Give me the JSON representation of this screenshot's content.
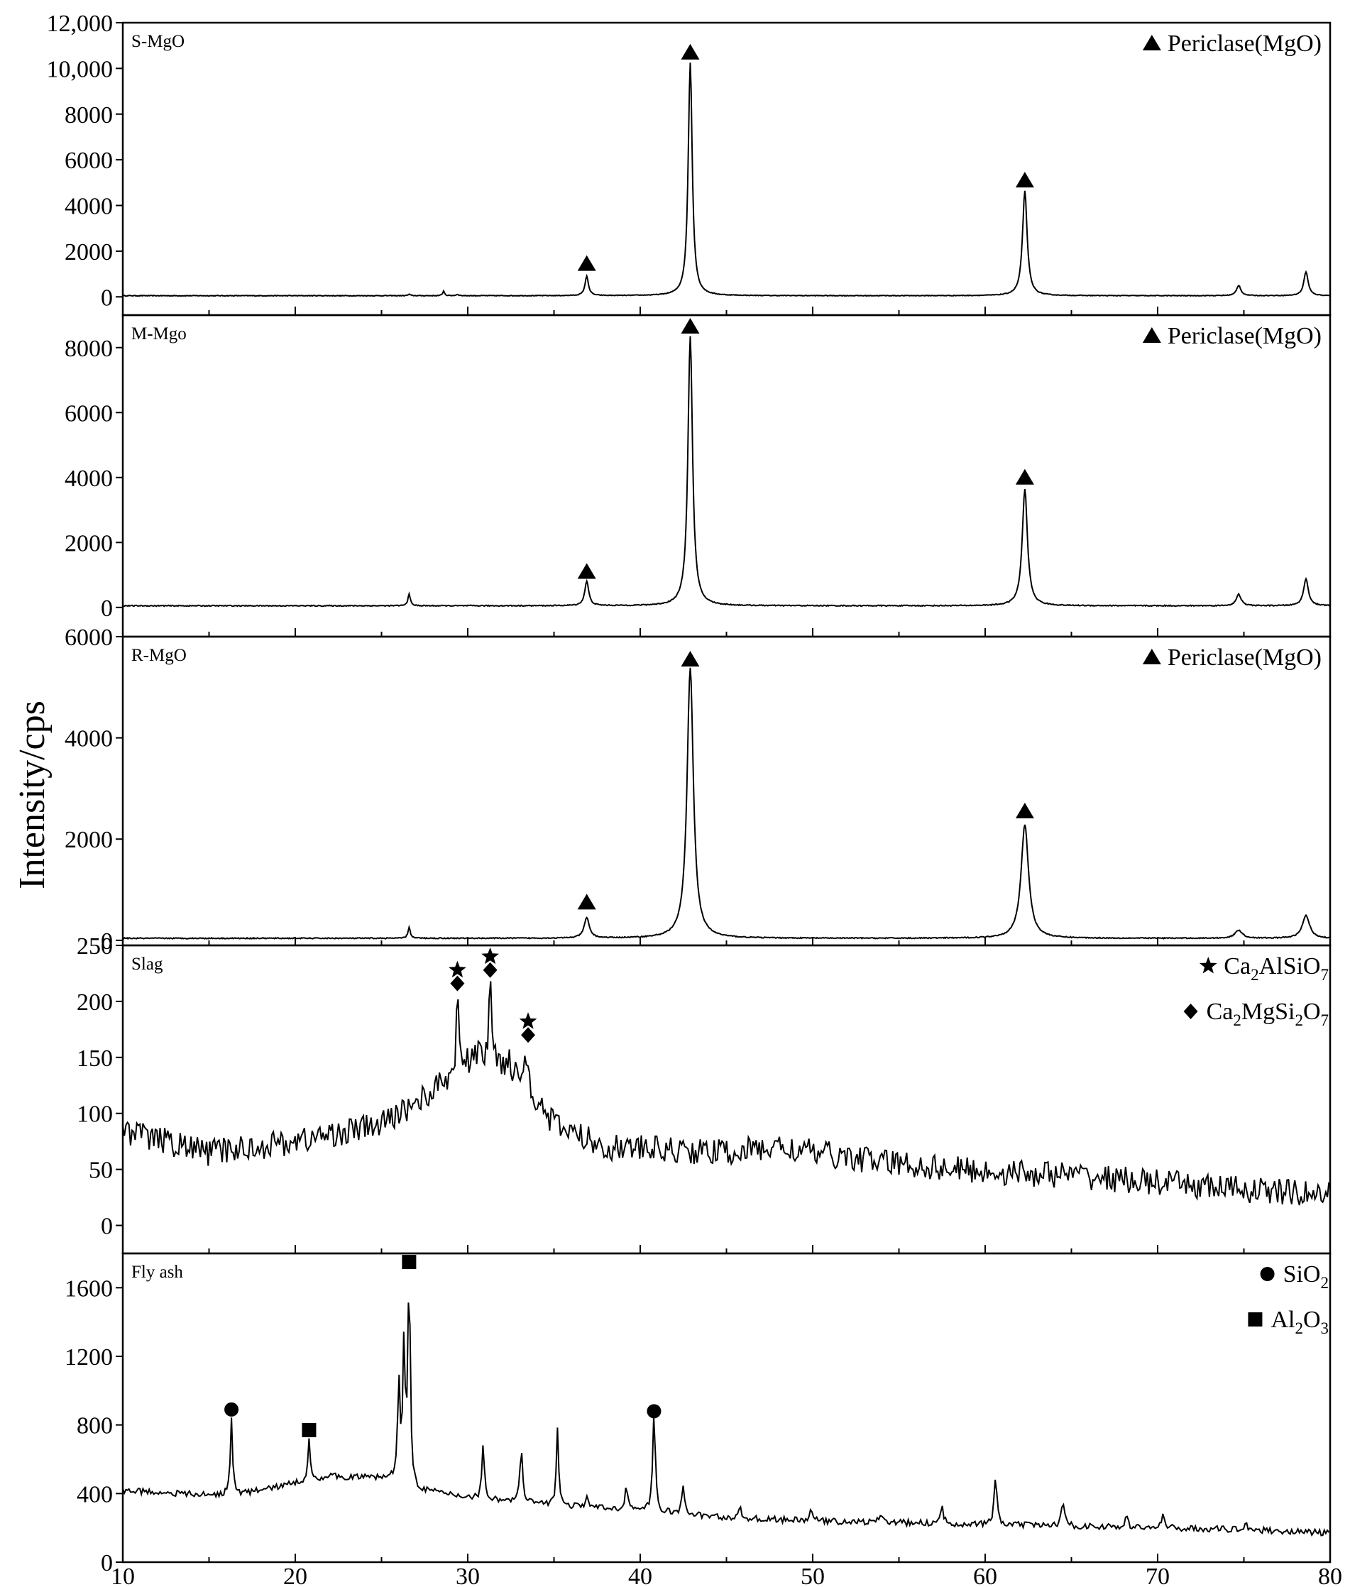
{
  "chart_data": {
    "type": "line",
    "ylabel": "Intensity/cps",
    "x_ticks": [
      "10",
      "20",
      "30",
      "40",
      "50",
      "60",
      "70",
      "80"
    ],
    "xlim": [
      10,
      80
    ],
    "panels": [
      {
        "name": "S-MgO",
        "ylim": [
          -800,
          12000
        ],
        "y_ticks": [
          {
            "v": 0,
            "t": "0"
          },
          {
            "v": 2000,
            "t": "2000"
          },
          {
            "v": 4000,
            "t": "4000"
          },
          {
            "v": 6000,
            "t": "6000"
          },
          {
            "v": 8000,
            "t": "8000"
          },
          {
            "v": 10000,
            "t": "10,000"
          },
          {
            "v": 12000,
            "t": "12,000"
          }
        ],
        "baseline": 50,
        "noise": 15,
        "peaks": [
          [
            26.6,
            60,
            0.08
          ],
          [
            28.6,
            220,
            0.06
          ],
          [
            29.4,
            60,
            0.08
          ],
          [
            36.9,
            850,
            0.12
          ],
          [
            42.9,
            10200,
            0.14
          ],
          [
            62.3,
            4600,
            0.16
          ],
          [
            74.7,
            450,
            0.15
          ],
          [
            78.6,
            1050,
            0.15
          ]
        ],
        "legend": [
          {
            "marker": "triangle",
            "text": "Periclase(MgO)"
          }
        ],
        "markers": [
          {
            "type": "triangle",
            "x": 36.9,
            "y": 1450
          },
          {
            "type": "triangle",
            "x": 42.9,
            "y": 10700
          },
          {
            "type": "triangle",
            "x": 62.3,
            "y": 5100
          }
        ]
      },
      {
        "name": "M-Mgo",
        "ylim": [
          -900,
          9000
        ],
        "y_ticks": [
          {
            "v": 0,
            "t": "0"
          },
          {
            "v": 2000,
            "t": "2000"
          },
          {
            "v": 4000,
            "t": "4000"
          },
          {
            "v": 6000,
            "t": "6000"
          },
          {
            "v": 8000,
            "t": "8000"
          }
        ],
        "baseline": 50,
        "noise": 15,
        "peaks": [
          [
            26.6,
            380,
            0.08
          ],
          [
            36.9,
            750,
            0.14
          ],
          [
            42.9,
            8300,
            0.16
          ],
          [
            62.3,
            3600,
            0.18
          ],
          [
            74.7,
            350,
            0.17
          ],
          [
            78.6,
            820,
            0.17
          ]
        ],
        "legend": [
          {
            "marker": "triangle",
            "text": "Periclase(MgO)"
          }
        ],
        "markers": [
          {
            "type": "triangle",
            "x": 36.9,
            "y": 1100
          },
          {
            "type": "triangle",
            "x": 42.9,
            "y": 8650
          },
          {
            "type": "triangle",
            "x": 62.3,
            "y": 4000
          }
        ]
      },
      {
        "name": "R-MgO",
        "ylim": [
          -100,
          6000
        ],
        "y_ticks": [
          {
            "v": 0,
            "t": "0"
          },
          {
            "v": 2000,
            "t": "2000"
          },
          {
            "v": 4000,
            "t": "4000"
          },
          {
            "v": 6000,
            "t": "6000"
          }
        ],
        "baseline": 40,
        "noise": 10,
        "peaks": [
          [
            26.6,
            220,
            0.08
          ],
          [
            36.9,
            400,
            0.18
          ],
          [
            42.9,
            5350,
            0.22
          ],
          [
            62.3,
            2250,
            0.26
          ],
          [
            74.7,
            160,
            0.25
          ],
          [
            78.6,
            450,
            0.25
          ]
        ],
        "legend": [
          {
            "marker": "triangle",
            "text": "Periclase(MgO)"
          }
        ],
        "markers": [
          {
            "type": "triangle",
            "x": 36.9,
            "y": 750
          },
          {
            "type": "triangle",
            "x": 42.9,
            "y": 5550
          },
          {
            "type": "triangle",
            "x": 62.3,
            "y": 2550
          }
        ]
      },
      {
        "name": "Slag",
        "ylim": [
          -25,
          250
        ],
        "y_ticks": [
          {
            "v": 0,
            "t": "0"
          },
          {
            "v": 50,
            "t": "50"
          },
          {
            "v": 100,
            "t": "100"
          },
          {
            "v": 150,
            "t": "150"
          },
          {
            "v": 200,
            "t": "200"
          },
          {
            "v": 250,
            "t": "250"
          }
        ],
        "background": [
          [
            10,
            85
          ],
          [
            15,
            65
          ],
          [
            20,
            75
          ],
          [
            25,
            90
          ],
          [
            28,
            120
          ],
          [
            30,
            145
          ],
          [
            31.5,
            150
          ],
          [
            33,
            130
          ],
          [
            35,
            90
          ],
          [
            38,
            70
          ],
          [
            45,
            65
          ],
          [
            48,
            70
          ],
          [
            50,
            65
          ],
          [
            55,
            55
          ],
          [
            60,
            48
          ],
          [
            65,
            45
          ],
          [
            70,
            38
          ],
          [
            75,
            32
          ],
          [
            80,
            27
          ]
        ],
        "noise": 12,
        "peaks": [
          [
            29.4,
            70,
            0.08
          ],
          [
            31.3,
            70,
            0.08
          ],
          [
            33.4,
            25,
            0.2
          ],
          [
            32.4,
            15,
            0.1
          ],
          [
            30.6,
            10,
            0.1
          ]
        ],
        "legend": [
          {
            "marker": "star",
            "text": "Ca",
            "sub": [
              [
                "2",
                "AlSiO"
              ],
              [
                "7",
                ""
              ]
            ]
          },
          {
            "marker": "diamond",
            "text": "Ca",
            "sub": [
              [
                "2",
                "MgSi"
              ],
              [
                "2",
                "O"
              ],
              [
                "7",
                ""
              ]
            ]
          }
        ],
        "markers": [
          {
            "type": "star",
            "x": 29.4,
            "y": 228
          },
          {
            "type": "diamond",
            "x": 29.4,
            "y": 216
          },
          {
            "type": "star",
            "x": 31.3,
            "y": 240
          },
          {
            "type": "diamond",
            "x": 31.3,
            "y": 228
          },
          {
            "type": "star",
            "x": 33.5,
            "y": 182
          },
          {
            "type": "diamond",
            "x": 33.5,
            "y": 170
          }
        ]
      },
      {
        "name": "Fly ash",
        "ylim": [
          0,
          1800
        ],
        "y_ticks": [
          {
            "v": 0,
            "t": "0"
          },
          {
            "v": 400,
            "t": "400"
          },
          {
            "v": 800,
            "t": "800"
          },
          {
            "v": 1200,
            "t": "1200"
          },
          {
            "v": 1600,
            "t": "1600"
          }
        ],
        "background": [
          [
            10,
            420
          ],
          [
            15,
            390
          ],
          [
            17,
            400
          ],
          [
            20,
            460
          ],
          [
            22,
            500
          ],
          [
            25,
            490
          ],
          [
            26,
            470
          ],
          [
            27,
            420
          ],
          [
            30,
            380
          ],
          [
            35,
            330
          ],
          [
            40,
            300
          ],
          [
            45,
            260
          ],
          [
            50,
            240
          ],
          [
            55,
            230
          ],
          [
            60,
            220
          ],
          [
            65,
            210
          ],
          [
            70,
            200
          ],
          [
            75,
            190
          ],
          [
            80,
            170
          ]
        ],
        "noise": 18,
        "peaks": [
          [
            16.3,
            430,
            0.08
          ],
          [
            20.8,
            230,
            0.09
          ],
          [
            26.0,
            580,
            0.08
          ],
          [
            26.3,
            770,
            0.08
          ],
          [
            26.6,
            1250,
            0.08
          ],
          [
            30.9,
            320,
            0.08
          ],
          [
            33.1,
            310,
            0.09
          ],
          [
            35.2,
            460,
            0.08
          ],
          [
            36.9,
            80,
            0.08
          ],
          [
            39.2,
            140,
            0.1
          ],
          [
            40.8,
            580,
            0.09
          ],
          [
            42.5,
            150,
            0.1
          ],
          [
            45.8,
            50,
            0.1
          ],
          [
            49.9,
            70,
            0.1
          ],
          [
            54.0,
            50,
            0.12
          ],
          [
            57.5,
            90,
            0.1
          ],
          [
            60.6,
            260,
            0.1
          ],
          [
            64.5,
            120,
            0.12
          ],
          [
            68.2,
            50,
            0.12
          ],
          [
            70.3,
            70,
            0.1
          ],
          [
            75.1,
            40,
            0.12
          ]
        ],
        "legend": [
          {
            "marker": "circle",
            "text": "SiO",
            "sub": [
              [
                "2",
                ""
              ]
            ]
          },
          {
            "marker": "square",
            "text": "Al",
            "sub": [
              [
                "2",
                "O"
              ],
              [
                "3",
                ""
              ]
            ]
          }
        ],
        "markers": [
          {
            "type": "circle",
            "x": 16.3,
            "y": 890
          },
          {
            "type": "square",
            "x": 20.8,
            "y": 770
          },
          {
            "type": "square",
            "x": 26.6,
            "y": 1750
          },
          {
            "type": "circle",
            "x": 40.8,
            "y": 880
          }
        ]
      }
    ]
  }
}
